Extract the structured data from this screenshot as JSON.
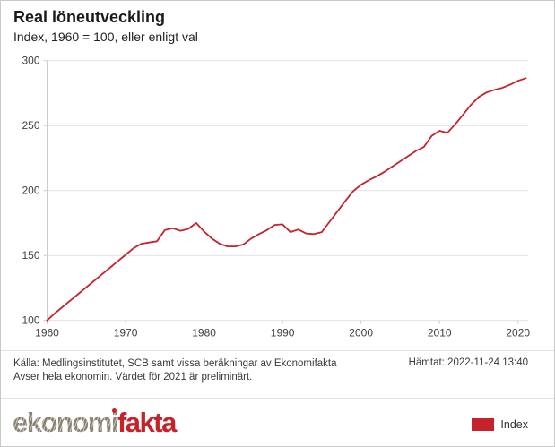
{
  "header": {
    "title": "Real löneutveckling",
    "subtitle": "Index, 1960 = 100, eller enligt val"
  },
  "chart_data": {
    "type": "line",
    "title": "Real löneutveckling",
    "subtitle": "Index, 1960 = 100, eller enligt val",
    "series_name": "Index",
    "start_year": 1960,
    "end_year": 2021,
    "x": [
      1960,
      1961,
      1962,
      1963,
      1964,
      1965,
      1966,
      1967,
      1968,
      1969,
      1970,
      1971,
      1972,
      1973,
      1974,
      1975,
      1976,
      1977,
      1978,
      1979,
      1980,
      1981,
      1982,
      1983,
      1984,
      1985,
      1986,
      1987,
      1988,
      1989,
      1990,
      1991,
      1992,
      1993,
      1994,
      1995,
      1996,
      1997,
      1998,
      1999,
      2000,
      2001,
      2002,
      2003,
      2004,
      2005,
      2006,
      2007,
      2008,
      2009,
      2010,
      2011,
      2012,
      2013,
      2014,
      2015,
      2016,
      2017,
      2018,
      2019,
      2020,
      2021
    ],
    "values": [
      100,
      105.5,
      110.5,
      115.5,
      120.5,
      125.5,
      130.5,
      135.5,
      140.5,
      145.5,
      150.5,
      155.5,
      159,
      160,
      161,
      169.5,
      171,
      169,
      170.5,
      175,
      168.5,
      163,
      159,
      157,
      157,
      158.5,
      163,
      166.5,
      169.5,
      173.5,
      174,
      168,
      170,
      167,
      166.5,
      168,
      176,
      184,
      192,
      199.5,
      204.5,
      208,
      211,
      214.5,
      218.5,
      222.5,
      226.5,
      230.5,
      233.5,
      242,
      246,
      244.5,
      251,
      258.5,
      266,
      272,
      275.5,
      277.5,
      279,
      281.5,
      284.5,
      286.5
    ],
    "xticks": [
      1960,
      1970,
      1980,
      1990,
      2000,
      2010,
      2020
    ],
    "yticks": [
      100,
      150,
      200,
      250,
      300
    ],
    "ylim": [
      100,
      300
    ],
    "grid": "horizontal",
    "legend_position": "bottom-right",
    "line_color": "#c5232d"
  },
  "source": {
    "line1": "Källa: Medlingsinstitutet, SCB samt vissa beräkningar av Ekonomifakta",
    "line2": "Avser hela ekonomin. Värdet för 2021 är preliminärt.",
    "fetched": "Hämtat: 2022-11-24 13:40"
  },
  "footer": {
    "logo": {
      "part1": "ekonom",
      "part2": "i",
      "part3": "fakta"
    }
  },
  "legend": {
    "label": "Index"
  },
  "colors": {
    "brand_red": "#c5222c",
    "line_red": "#c5232d",
    "logo_taupe": "#8a8171",
    "grid_gray": "#e1e1e1",
    "axis_gray": "#cccccc",
    "text_dark": "#1a1a1a",
    "axis_text": "#404040"
  }
}
